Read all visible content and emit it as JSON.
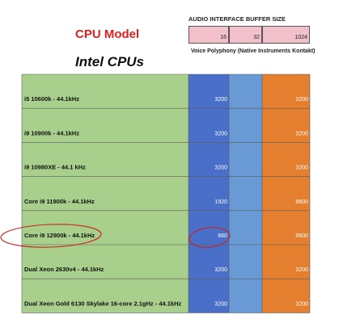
{
  "header": {
    "buffer_title": "AUDIO INTERFACE BUFFER SIZE",
    "cpu_model_label": "CPU Model",
    "buffer_sizes": [
      "16",
      "32",
      "1024"
    ],
    "polyphony_label": "Voice Polyphony (Native Instruments Kontakt)",
    "group_title": "Intel CPUs"
  },
  "colors": {
    "cpu_column": "#a8cf8b",
    "buffer_16": "#4a6fc9",
    "buffer_32": "#6a9ad6",
    "buffer_1024": "#e37f2e",
    "header_cell": "#f2c0cb",
    "annotation": "#cc1f1f",
    "title": "#e02020"
  },
  "chart_data": {
    "type": "table",
    "title": "CPU Model",
    "column_headers": [
      "16",
      "32",
      "1024"
    ],
    "ylabel": "Voice Polyphony (Native Instruments Kontakt)",
    "rows": [
      {
        "cpu": "i5 10600k - 44.1kHz",
        "values": [
          3200,
          null,
          3200
        ]
      },
      {
        "cpu": "i9 10900k - 44.1kHz",
        "values": [
          3200,
          null,
          3200
        ]
      },
      {
        "cpu": "i9 10980XE - 44.1 kHz",
        "values": [
          3200,
          null,
          3200
        ]
      },
      {
        "cpu": "Core i9 11900k - 44.1kHz",
        "values": [
          1920,
          null,
          9600
        ]
      },
      {
        "cpu": "Core i9 12900k - 44.1kHz",
        "values": [
          660,
          null,
          9600
        ]
      },
      {
        "cpu": "Dual Xeon 2630v4 - 44.1kHz",
        "values": [
          3200,
          null,
          3200
        ]
      },
      {
        "cpu": "Dual Xeon Gold 6130 Skylake 16-core 2.1gHz - 44.1kHz",
        "values": [
          3200,
          null,
          3200
        ]
      }
    ],
    "highlighted_row": 4
  }
}
